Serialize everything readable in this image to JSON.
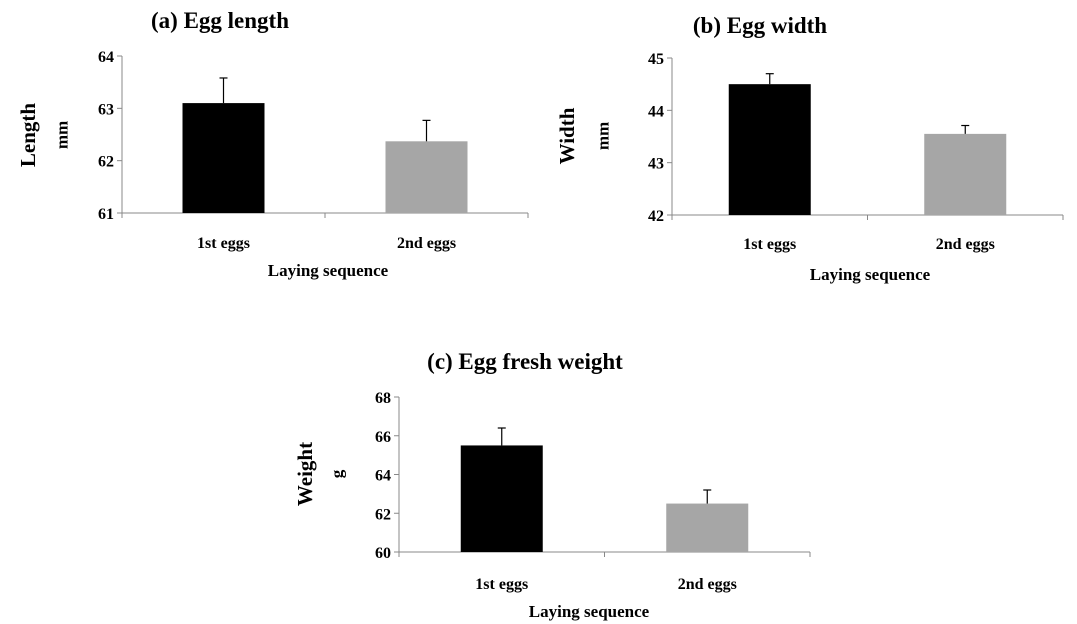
{
  "chart_data": [
    {
      "type": "bar",
      "title": "(a) Egg length",
      "xlabel": "Laying sequence",
      "ylabel": "Length",
      "yunit": "mm",
      "categories": [
        "1st eggs",
        "2nd eggs"
      ],
      "values": [
        63.1,
        62.37
      ],
      "errors": [
        0.48,
        0.4
      ],
      "colors": [
        "#000000",
        "#a6a6a6"
      ],
      "ylim": [
        61,
        64
      ],
      "yticks": [
        61,
        62,
        63,
        64
      ],
      "grid": false
    },
    {
      "type": "bar",
      "title": "(b) Egg width",
      "xlabel": "Laying sequence",
      "ylabel": "Width",
      "yunit": "mm",
      "categories": [
        "1st eggs",
        "2nd eggs"
      ],
      "values": [
        44.5,
        43.55
      ],
      "errors": [
        0.2,
        0.16
      ],
      "colors": [
        "#000000",
        "#a6a6a6"
      ],
      "ylim": [
        42,
        45
      ],
      "yticks": [
        42,
        43,
        44,
        45
      ],
      "grid": false
    },
    {
      "type": "bar",
      "title": "(c) Egg fresh weight",
      "xlabel": "Laying sequence",
      "ylabel": "Weight",
      "yunit": "g",
      "categories": [
        "1st eggs",
        "2nd eggs"
      ],
      "values": [
        65.5,
        62.5
      ],
      "errors": [
        0.9,
        0.7
      ],
      "colors": [
        "#000000",
        "#a6a6a6"
      ],
      "ylim": [
        60,
        68
      ],
      "yticks": [
        60,
        62,
        64,
        66,
        68
      ],
      "grid": false
    }
  ]
}
